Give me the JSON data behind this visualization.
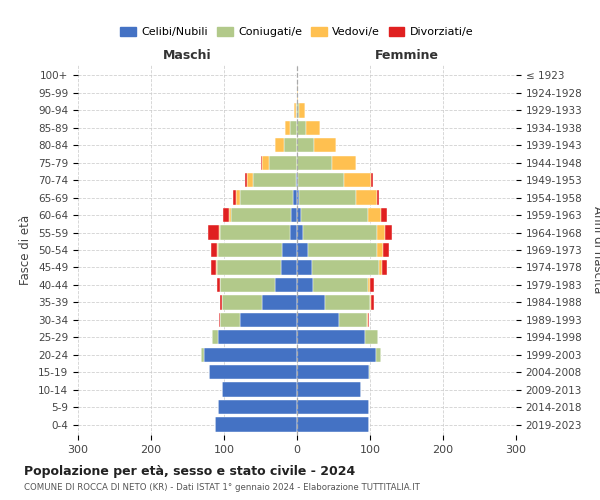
{
  "age_groups": [
    "0-4",
    "5-9",
    "10-14",
    "15-19",
    "20-24",
    "25-29",
    "30-34",
    "35-39",
    "40-44",
    "45-49",
    "50-54",
    "55-59",
    "60-64",
    "65-69",
    "70-74",
    "75-79",
    "80-84",
    "85-89",
    "90-94",
    "95-99",
    "100+"
  ],
  "birth_years": [
    "2019-2023",
    "2014-2018",
    "2009-2013",
    "2004-2008",
    "1999-2003",
    "1994-1998",
    "1989-1993",
    "1984-1988",
    "1979-1983",
    "1974-1978",
    "1969-1973",
    "1964-1968",
    "1959-1963",
    "1954-1958",
    "1949-1953",
    "1944-1948",
    "1939-1943",
    "1934-1938",
    "1929-1933",
    "1924-1928",
    "≤ 1923"
  ],
  "male_celibi": [
    113,
    108,
    103,
    120,
    128,
    108,
    78,
    48,
    30,
    22,
    20,
    10,
    8,
    5,
    2,
    0,
    0,
    0,
    0,
    0,
    0
  ],
  "male_coniugati": [
    0,
    0,
    0,
    0,
    4,
    8,
    28,
    55,
    75,
    88,
    88,
    95,
    82,
    73,
    58,
    38,
    18,
    10,
    2,
    0,
    0
  ],
  "male_vedovi": [
    0,
    0,
    0,
    0,
    0,
    0,
    0,
    0,
    0,
    1,
    2,
    2,
    3,
    5,
    8,
    10,
    12,
    7,
    2,
    0,
    0
  ],
  "male_divorziati": [
    0,
    0,
    0,
    0,
    0,
    0,
    1,
    3,
    5,
    7,
    8,
    15,
    8,
    5,
    3,
    2,
    0,
    0,
    0,
    0,
    0
  ],
  "female_nubili": [
    98,
    98,
    88,
    98,
    108,
    93,
    58,
    38,
    22,
    20,
    15,
    8,
    5,
    3,
    2,
    0,
    0,
    0,
    0,
    0,
    0
  ],
  "female_coniugate": [
    0,
    0,
    0,
    2,
    7,
    18,
    38,
    62,
    75,
    92,
    95,
    102,
    92,
    78,
    62,
    48,
    23,
    12,
    3,
    0,
    0
  ],
  "female_vedove": [
    0,
    0,
    0,
    0,
    0,
    0,
    1,
    2,
    3,
    5,
    8,
    10,
    18,
    28,
    38,
    33,
    30,
    20,
    8,
    2,
    0
  ],
  "female_divorziate": [
    0,
    0,
    0,
    0,
    0,
    0,
    1,
    3,
    5,
    6,
    8,
    10,
    8,
    3,
    2,
    0,
    0,
    0,
    0,
    0,
    0
  ],
  "color_celibi": "#4472c4",
  "color_coniugati": "#b2c98a",
  "color_vedovi": "#ffc050",
  "color_divorziati": "#e02020",
  "legend_labels": [
    "Celibi/Nubili",
    "Coniugati/e",
    "Vedovi/e",
    "Divorziati/e"
  ],
  "title": "Popolazione per età, sesso e stato civile - 2024",
  "subtitle": "COMUNE DI ROCCA DI NETO (KR) - Dati ISTAT 1° gennaio 2024 - Elaborazione TUTTITALIA.IT",
  "ylabel_left": "Fasce di età",
  "ylabel_right": "Anni di nascita",
  "label_maschi": "Maschi",
  "label_femmine": "Femmine",
  "xlim": 300,
  "bg_color": "#ffffff",
  "grid_color": "#cccccc"
}
